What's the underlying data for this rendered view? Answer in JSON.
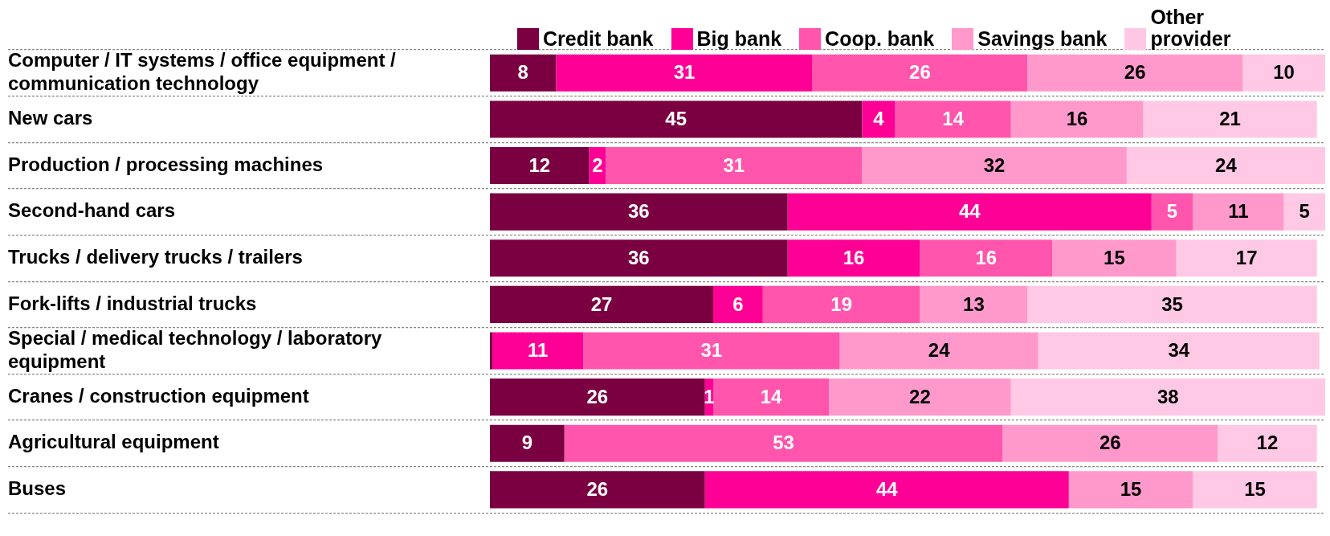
{
  "chart_data": {
    "type": "bar",
    "orientation": "horizontal",
    "stacked": true,
    "legend": "top",
    "tick_labels": "y",
    "grid": "y",
    "xlim": [
      0,
      101
    ],
    "categories": [
      "Computer / IT systems / office equipment / communication technology",
      "New cars",
      "Production / processing machines",
      "Second-hand cars",
      "Trucks / delivery trucks / trailers",
      "Fork-lifts / industrial trucks",
      "Special / medical technology / laboratory equipment",
      "Cranes / construction equipment",
      "Agricultural equipment",
      "Buses"
    ],
    "series": [
      {
        "name": "Credit bank",
        "color": "#7b0041",
        "values": [
          8,
          45,
          12,
          36,
          36,
          27,
          0.3,
          26,
          9,
          26
        ],
        "value_labels": [
          "8",
          "45",
          "12",
          "36",
          "36",
          "27",
          null,
          "26",
          "9",
          "26"
        ]
      },
      {
        "name": "Big bank",
        "color": "#ff0096",
        "values": [
          31,
          4,
          2,
          44,
          16,
          6,
          11,
          1,
          0,
          44
        ],
        "value_labels": [
          "31",
          "4",
          "2",
          "44",
          "16",
          "6",
          "11",
          "1",
          null,
          "44"
        ]
      },
      {
        "name": "Coop. bank",
        "color": "#ff55ac",
        "values": [
          26,
          14,
          31,
          5,
          16,
          19,
          31,
          14,
          53,
          0
        ],
        "value_labels": [
          "26",
          "14",
          "31",
          "5",
          "16",
          "19",
          "31",
          "14",
          "53",
          null
        ]
      },
      {
        "name": "Savings bank",
        "color": "#ff99cc",
        "values": [
          26,
          16,
          32,
          11,
          15,
          13,
          24,
          22,
          26,
          15
        ],
        "value_labels": [
          "26",
          "16",
          "32",
          "11",
          "15",
          "13",
          "24",
          "22",
          "26",
          "15"
        ]
      },
      {
        "name": "Other provider",
        "color": "#ffc8e4",
        "values": [
          10,
          21,
          24,
          5,
          17,
          35,
          34,
          38,
          12,
          15
        ],
        "value_labels": [
          "10",
          "21",
          "24",
          "5",
          "17",
          "35",
          "34",
          "38",
          "12",
          "15"
        ]
      }
    ]
  }
}
